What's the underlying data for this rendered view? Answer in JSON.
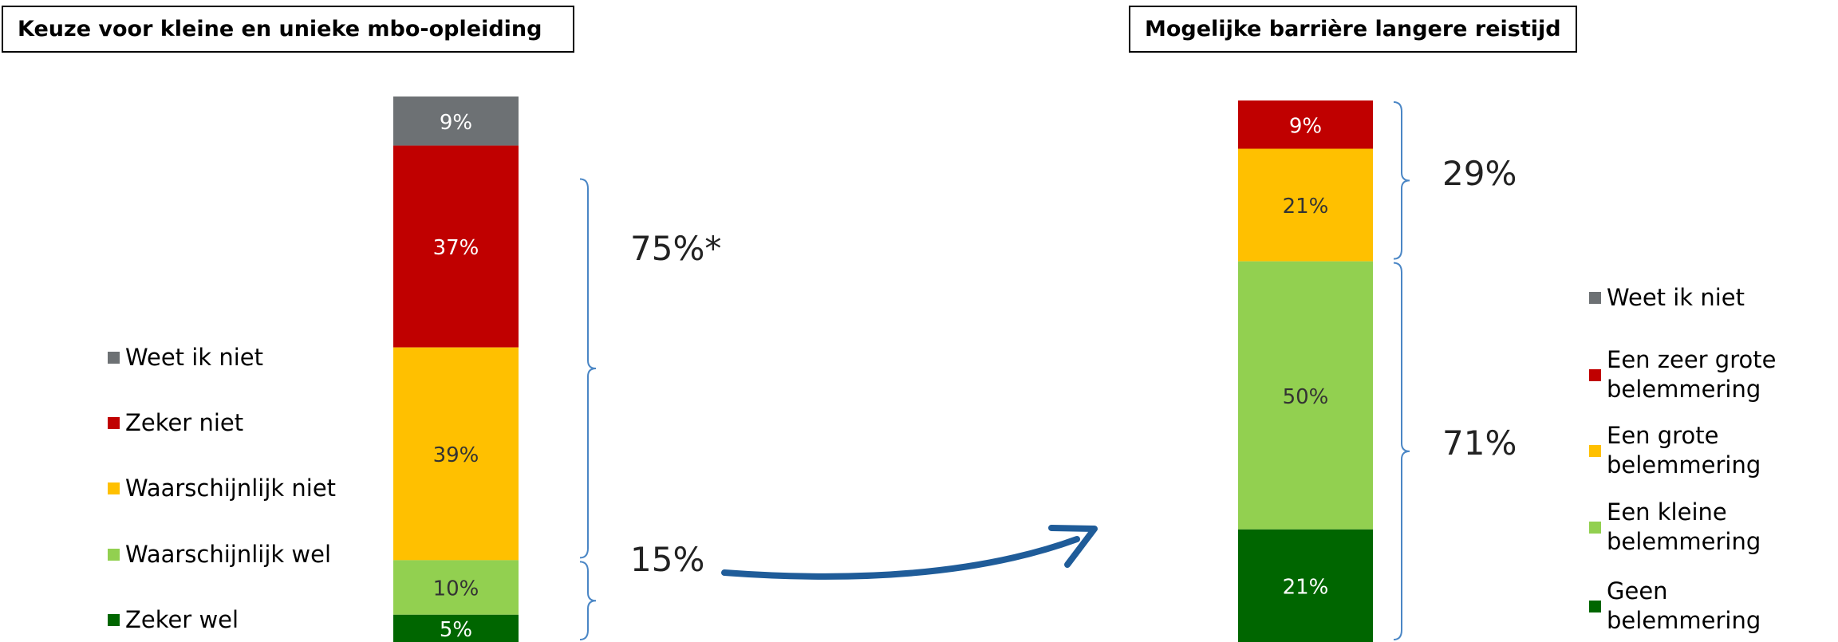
{
  "chart_data": [
    {
      "type": "bar",
      "stacked": true,
      "title": "Keuze voor kleine en unieke mbo-opleiding",
      "legend_position": "left",
      "series": [
        {
          "name": "Weet ik niet",
          "value": 9,
          "label": "9%",
          "color": "#6D7174"
        },
        {
          "name": "Zeker niet",
          "value": 37,
          "label": "37%",
          "color": "#C00000"
        },
        {
          "name": "Waarschijnlijk niet",
          "value": 39,
          "label": "39%",
          "color": "#FFC000"
        },
        {
          "name": "Waarschijnlijk wel",
          "value": 10,
          "label": "10%",
          "color": "#92D050"
        },
        {
          "name": "Zeker wel",
          "value": 5,
          "label": "5%",
          "color": "#006600"
        }
      ],
      "brackets": [
        {
          "label": "75%*",
          "from": "Zeker niet",
          "to": "Waarschijnlijk niet"
        },
        {
          "label": "15%",
          "from": "Waarschijnlijk wel",
          "to": "Zeker wel"
        }
      ]
    },
    {
      "type": "bar",
      "stacked": true,
      "title": "Mogelijke barrière langere reistijd",
      "legend_position": "right",
      "series": [
        {
          "name": "Weet ik niet",
          "value": 0,
          "label": "",
          "color": "#6D7174"
        },
        {
          "name": "Een zeer grote belemmering",
          "value": 9,
          "label": "9%",
          "color": "#C00000"
        },
        {
          "name": "Een grote belemmering",
          "value": 21,
          "label": "21%",
          "color": "#FFC000"
        },
        {
          "name": "Een kleine belemmering",
          "value": 50,
          "label": "50%",
          "color": "#92D050"
        },
        {
          "name": "Geen belemmering",
          "value": 21,
          "label": "21%",
          "color": "#006600"
        }
      ],
      "brackets": [
        {
          "label": "29%",
          "from": "Een zeer grote belemmering",
          "to": "Een grote belemmering"
        },
        {
          "label": "71%",
          "from": "Een kleine belemmering",
          "to": "Geen belemmering"
        }
      ]
    }
  ],
  "colors": {
    "bracket": "#4A86C5",
    "arrow": "#1F5C99"
  }
}
